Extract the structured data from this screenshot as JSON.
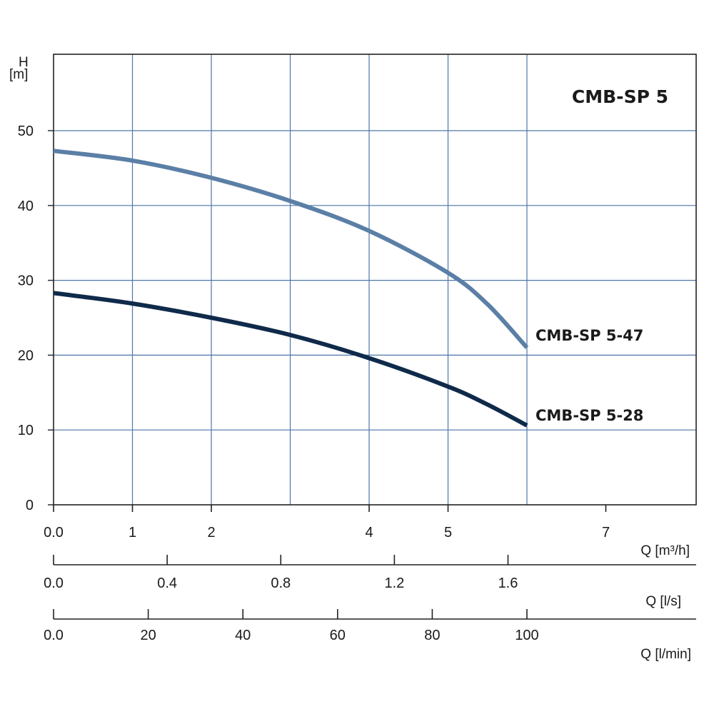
{
  "chart_data": {
    "type": "line",
    "title": "CMB-SP 5",
    "ylabel": "H",
    "yunit": "[m]",
    "ylim": [
      0,
      60
    ],
    "yticks": [
      0,
      10,
      20,
      30,
      40,
      50
    ],
    "ytick_labels": [
      "0",
      "10",
      "20",
      "30",
      "40",
      "50"
    ],
    "xlim": [
      0,
      8.1
    ],
    "grid": true,
    "x_axes": [
      {
        "label": "Q [m³/h]",
        "ticks": [
          0,
          1,
          2,
          4,
          5,
          7
        ],
        "tick_labels": [
          "0.0",
          "1",
          "2",
          "4",
          "5",
          "7"
        ]
      },
      {
        "label": "Q [l/s]",
        "ticks": [
          0,
          0.4,
          0.8,
          1.2,
          1.6
        ],
        "tick_labels": [
          "0.0",
          "0.4",
          "0.8",
          "1.2",
          "1.6"
        ]
      },
      {
        "label": "Q [l/min]",
        "ticks": [
          0,
          20,
          40,
          60,
          80,
          100
        ],
        "tick_labels": [
          "0.0",
          "20",
          "40",
          "60",
          "80",
          "100"
        ]
      }
    ],
    "series": [
      {
        "name": "CMB-SP 5-47",
        "color": "#5b7fa6",
        "x": [
          0,
          1,
          2,
          3,
          4,
          5,
          5.5,
          6
        ],
        "y": [
          47.3,
          46.0,
          43.7,
          40.6,
          36.6,
          31.0,
          26.8,
          21.0
        ]
      },
      {
        "name": "CMB-SP 5-28",
        "color": "#0f2a4a",
        "x": [
          0,
          1,
          2,
          3,
          4,
          5,
          5.5,
          6
        ],
        "y": [
          28.3,
          26.9,
          25.0,
          22.7,
          19.6,
          15.8,
          13.4,
          10.6
        ]
      }
    ]
  }
}
